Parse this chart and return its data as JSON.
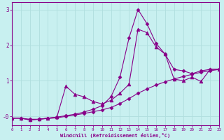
{
  "xlabel": "Windchill (Refroidissement éolien,°C)",
  "background_color": "#c8f0f0",
  "line_color": "#880088",
  "grid_color": "#aadddd",
  "xlim": [
    0,
    23
  ],
  "ylim": [
    -0.25,
    3.2
  ],
  "yticks": [
    0,
    1,
    2,
    3
  ],
  "ytick_labels": [
    "-0",
    "1",
    "2",
    "3"
  ],
  "xticks": [
    0,
    1,
    2,
    3,
    4,
    5,
    6,
    7,
    8,
    9,
    10,
    11,
    12,
    13,
    14,
    15,
    16,
    17,
    18,
    19,
    20,
    21,
    22,
    23
  ],
  "series": [
    {
      "x": [
        0,
        1,
        2,
        3,
        4,
        5,
        6,
        7,
        8,
        9,
        10,
        11,
        12,
        13,
        14,
        15,
        16,
        17,
        18,
        19,
        20,
        21,
        22,
        23
      ],
      "y": [
        -0.05,
        -0.05,
        -0.08,
        -0.08,
        -0.06,
        -0.04,
        0.0,
        0.04,
        0.08,
        0.13,
        0.18,
        0.25,
        0.36,
        0.5,
        0.65,
        0.77,
        0.88,
        0.97,
        1.05,
        1.12,
        1.18,
        1.24,
        1.28,
        1.32
      ],
      "marker": "D",
      "markersize": 2.5,
      "linewidth": 0.8
    },
    {
      "x": [
        0,
        1,
        2,
        3,
        4,
        5,
        6,
        7,
        8,
        9,
        10,
        11,
        12,
        13,
        14,
        15,
        16,
        17,
        18,
        19,
        20,
        21,
        22,
        23
      ],
      "y": [
        -0.05,
        -0.05,
        -0.1,
        -0.08,
        -0.05,
        -0.02,
        0.02,
        0.06,
        0.12,
        0.2,
        0.3,
        0.55,
        1.1,
        2.2,
        3.0,
        2.6,
        2.05,
        1.75,
        1.32,
        1.28,
        1.2,
        1.28,
        1.32,
        1.32
      ],
      "marker": "D",
      "markersize": 2.5,
      "linewidth": 0.8
    },
    {
      "x": [
        0,
        1,
        2,
        3,
        4,
        5,
        6,
        7,
        8,
        9,
        10,
        11,
        12,
        13,
        14,
        15,
        16,
        17,
        18,
        19,
        20,
        21,
        22,
        23
      ],
      "y": [
        -0.05,
        -0.05,
        -0.1,
        -0.08,
        -0.05,
        -0.02,
        0.85,
        0.62,
        0.55,
        0.42,
        0.35,
        0.45,
        0.65,
        0.9,
        2.45,
        2.35,
        1.95,
        1.75,
        1.05,
        1.0,
        1.1,
        0.98,
        1.32,
        1.32
      ],
      "marker": "^",
      "markersize": 3.5,
      "linewidth": 0.8
    }
  ]
}
